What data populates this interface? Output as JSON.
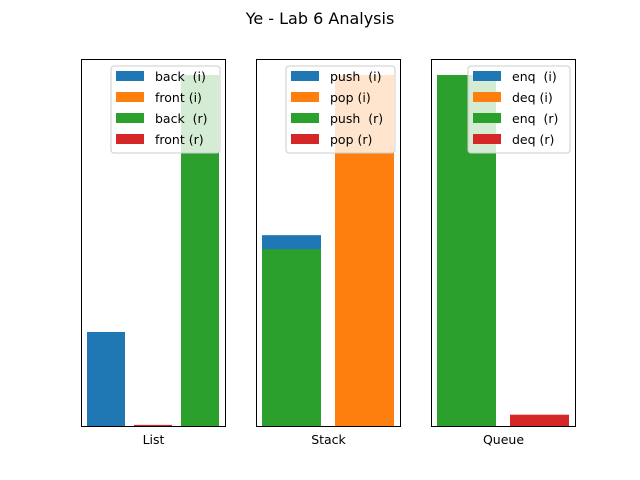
{
  "title": "Ye - Lab 6 Analysis",
  "chart_data": [
    {
      "type": "bar",
      "xlabel": "List",
      "ylim": [
        0,
        100
      ],
      "yticks": "hidden",
      "legend_position": "upper-right",
      "series": [
        {
          "name": "back  (i)",
          "color": "#1f77b4",
          "x": 0,
          "value": 27
        },
        {
          "name": "front (i)",
          "color": "#ff7f0e",
          "x": 1,
          "value": 0
        },
        {
          "name": "back  (r)",
          "color": "#2ca02c",
          "x": 2,
          "value": 100
        },
        {
          "name": "front (r)",
          "color": "#d62728",
          "x": 1,
          "value": 0.6
        }
      ]
    },
    {
      "type": "bar",
      "xlabel": "Stack",
      "ylim": [
        0,
        100
      ],
      "yticks": "hidden",
      "legend_position": "upper-right",
      "series": [
        {
          "name": "push  (i)",
          "color": "#1f77b4",
          "x": 0,
          "value": 54.5
        },
        {
          "name": "pop (i)",
          "color": "#ff7f0e",
          "x": 1,
          "value": 100
        },
        {
          "name": "push  (r)",
          "color": "#2ca02c",
          "x": 0,
          "value": 50.5
        },
        {
          "name": "pop (r)",
          "color": "#d62728",
          "x": 1,
          "value": 0
        }
      ]
    },
    {
      "type": "bar",
      "xlabel": "Queue",
      "ylim": [
        0,
        100
      ],
      "yticks": "hidden",
      "legend_position": "upper-right",
      "series": [
        {
          "name": "enq  (i)",
          "color": "#1f77b4",
          "x": 0,
          "value": 0
        },
        {
          "name": "deq (i)",
          "color": "#ff7f0e",
          "x": 1,
          "value": 0
        },
        {
          "name": "enq  (r)",
          "color": "#2ca02c",
          "x": 0,
          "value": 100
        },
        {
          "name": "deq (r)",
          "color": "#d62728",
          "x": 1,
          "value": 3.5
        }
      ]
    }
  ]
}
